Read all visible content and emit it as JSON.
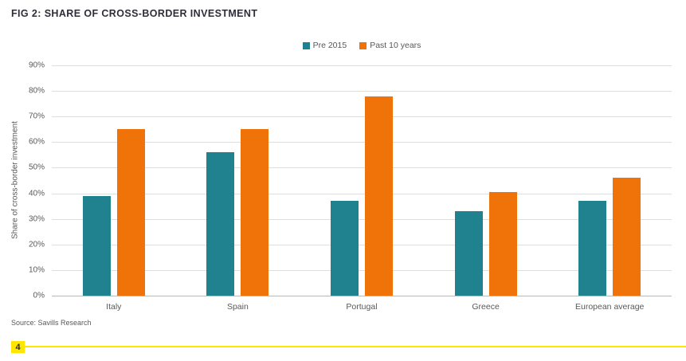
{
  "figure": {
    "title": "FIG 2: SHARE OF CROSS-BORDER INVESTMENT",
    "source": "Source: Savills Research",
    "page_number": "4"
  },
  "colors": {
    "teal": "#20818F",
    "orange": "#F0730A",
    "gridline": "#DEDEDE",
    "baseline": "#B9B9B9",
    "text_gray": "#595959",
    "title_dark": "#2E2E38",
    "footer_yellow": "#FFE600"
  },
  "chart_data": {
    "type": "bar",
    "title": "FIG 2: SHARE OF CROSS-BORDER INVESTMENT",
    "categories": [
      "Italy",
      "Spain",
      "Portugal",
      "Greece",
      "European average"
    ],
    "series": [
      {
        "name": "Pre 2015",
        "color": "#20818F",
        "values": [
          39,
          56,
          37,
          33,
          37
        ]
      },
      {
        "name": "Past 10 years",
        "color": "#F0730A",
        "values": [
          65,
          65,
          78,
          40.5,
          46
        ]
      }
    ],
    "xlabel": "",
    "ylabel": "Share of cross-border investment",
    "ylim": [
      0,
      90
    ],
    "yticks": [
      "0%",
      "10%",
      "20%",
      "30%",
      "40%",
      "50%",
      "60%",
      "70%",
      "80%",
      "90%"
    ],
    "grid": "horizontal",
    "legend_position": "top-center"
  }
}
